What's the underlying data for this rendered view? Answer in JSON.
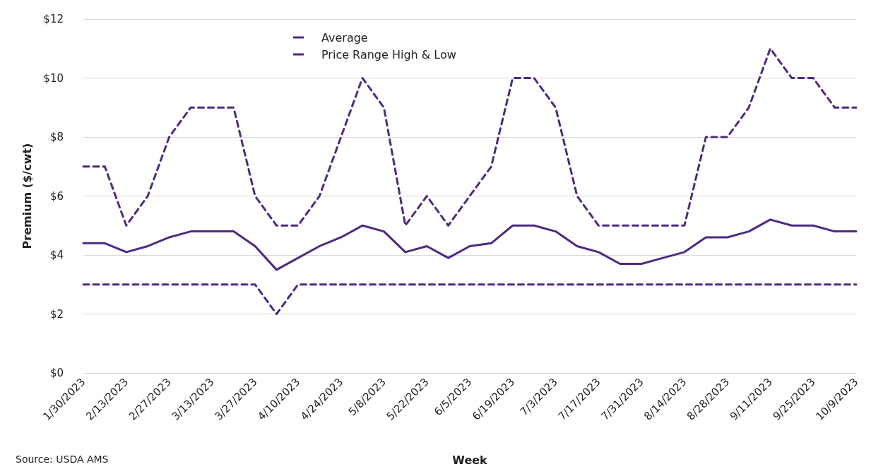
{
  "chart_data": {
    "type": "line",
    "xlabel": "Week",
    "ylabel": "Premium ($/cwt)",
    "categories": [
      "1/30/2023",
      null,
      "2/13/2023",
      null,
      "2/27/2023",
      null,
      "3/13/2023",
      null,
      "3/27/2023",
      null,
      "4/10/2023",
      null,
      "4/24/2023",
      null,
      "5/8/2023",
      null,
      "5/22/2023",
      null,
      "6/5/2023",
      null,
      "6/19/2023",
      null,
      "7/3/2023",
      null,
      "7/17/2023",
      null,
      "7/31/2023",
      null,
      "8/14/2023",
      null,
      "8/28/2023",
      null,
      "9/11/2023",
      null,
      "9/25/2023",
      null,
      "10/9/2023"
    ],
    "series": [
      {
        "name": "Average",
        "color": "#4e2a84",
        "line_style": "solid",
        "values": [
          4.4,
          4.4,
          4.1,
          4.3,
          4.6,
          4.8,
          4.8,
          4.8,
          4.3,
          3.5,
          3.9,
          4.3,
          4.6,
          5.0,
          4.8,
          4.1,
          4.3,
          3.9,
          4.3,
          4.4,
          5.0,
          5.0,
          4.8,
          4.3,
          4.1,
          3.7,
          3.7,
          3.9,
          4.1,
          4.6,
          4.6,
          4.8,
          5.2,
          5.0,
          5.0,
          4.8,
          4.8
        ]
      },
      {
        "name": "Price Range High & Low",
        "color": "#4e2a84",
        "line_style": "dashed",
        "values": [
          7,
          7,
          5,
          6,
          8,
          9,
          9,
          9,
          6,
          5,
          5,
          6,
          8,
          10,
          9,
          5,
          6,
          5,
          6,
          7,
          10,
          10,
          9,
          6,
          5,
          5,
          5,
          5,
          5,
          8,
          8,
          9,
          11,
          10,
          10,
          9,
          9
        ]
      },
      {
        "color": "#4e2a84",
        "line_style": "dashed",
        "values": [
          3,
          3,
          3,
          3,
          3,
          3,
          3,
          3,
          3,
          2,
          3,
          3,
          3,
          3,
          3,
          3,
          3,
          3,
          3,
          3,
          3,
          3,
          3,
          3,
          3,
          3,
          3,
          3,
          3,
          3,
          3,
          3,
          3,
          3,
          3,
          3,
          3
        ]
      }
    ],
    "ylim": [
      0,
      12
    ],
    "yticks": [
      {
        "value": 0,
        "label": "$0"
      },
      {
        "value": 2,
        "label": "$2"
      },
      {
        "value": 4,
        "label": "$4"
      },
      {
        "value": 6,
        "label": "$6"
      },
      {
        "value": 8,
        "label": "$8"
      },
      {
        "value": 10,
        "label": "$10"
      },
      {
        "value": 12,
        "label": "$12"
      }
    ],
    "grid": "y",
    "legend": "top",
    "marker": "none",
    "annotations": [
      "Source: USDA AMS"
    ]
  }
}
